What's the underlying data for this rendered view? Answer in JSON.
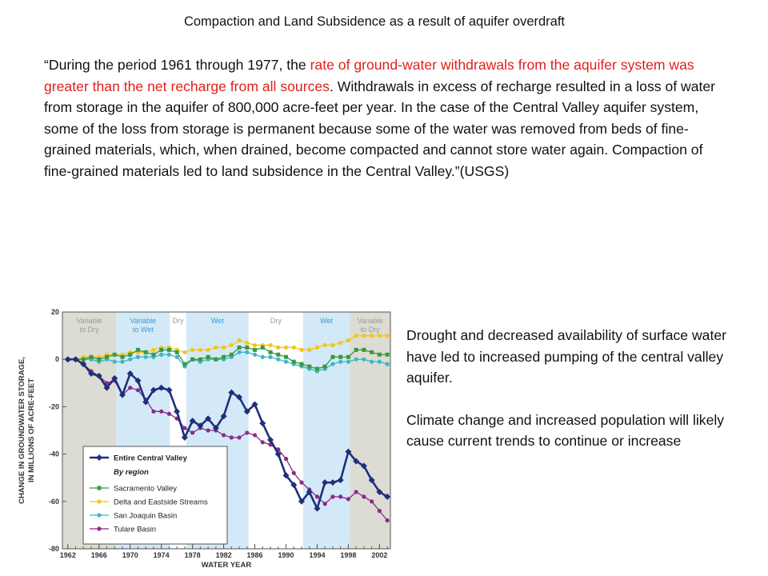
{
  "title": "Compaction and Land Subsidence as a result of aquifer overdraft",
  "quote": {
    "parts": [
      "“During the period 1961 through 1977, the ",
      "rate of ground-water withdrawals from the aquifer system was greater than the net recharge from all sources",
      ". Withdrawals in excess of recharge resulted in a loss of water from storage in the aquifer of 800,000 acre-feet per year. In the case of the Central Valley aquifer system, some of the loss from storage is permanent because some of the water was removed from beds of fine-grained materials, which, when drained, become compacted and cannot store water again. Compaction of fine-grained materials led to land subsidence in the Central Valley.”(USGS)"
    ],
    "highlight_part": 1,
    "highlight_color": "#e0201b"
  },
  "side_text": [
    "Drought and decreased availability of surface water have led to increased pumping of the central valley aquifer.",
    "Climate change and increased population will likely cause current trends to continue or increase"
  ],
  "chart_data": {
    "type": "line",
    "y_label_lines": [
      "CHANGE IN GROUNDWATER STORAGE,",
      "IN MILLIONS OF ACRE-FEET"
    ],
    "x_label": "WATER YEAR",
    "xlim": [
      1961.3,
      2003.4
    ],
    "xticks": [
      1962,
      1966,
      1970,
      1974,
      1978,
      1982,
      1986,
      1990,
      1994,
      1998,
      2002
    ],
    "ylim": [
      -80,
      20
    ],
    "yticks": [
      -80,
      -60,
      -40,
      -20,
      0,
      20
    ],
    "periods": [
      {
        "label_lines": [
          "Variable",
          "to Dry"
        ],
        "start": 1961.3,
        "end": 1968.2,
        "color": "#dcdcd4",
        "text_color": "#9a9a92"
      },
      {
        "label_lines": [
          "Variable",
          "to Wet"
        ],
        "start": 1968.2,
        "end": 1975.1,
        "color": "#d3e9f7",
        "text_color": "#3a9ad6"
      },
      {
        "label_lines": [
          "Dry"
        ],
        "start": 1975.1,
        "end": 1977.2,
        "color": "#ffffff",
        "text_color": "#9a9a92"
      },
      {
        "label_lines": [
          "Wet"
        ],
        "start": 1977.2,
        "end": 1985.2,
        "color": "#d3e9f7",
        "text_color": "#3a9ad6"
      },
      {
        "label_lines": [
          "Dry"
        ],
        "start": 1985.2,
        "end": 1992.2,
        "color": "#ffffff",
        "text_color": "#9a9a92"
      },
      {
        "label_lines": [
          "Wet"
        ],
        "start": 1992.2,
        "end": 1998.2,
        "color": "#d3e9f7",
        "text_color": "#3a9ad6"
      },
      {
        "label_lines": [
          "Variable",
          "to Dry"
        ],
        "start": 1998.2,
        "end": 2003.4,
        "color": "#dcdcd4",
        "text_color": "#9a9a92"
      }
    ],
    "legend_subheading": "By region",
    "x": [
      1962,
      1963,
      1964,
      1965,
      1966,
      1967,
      1968,
      1969,
      1970,
      1971,
      1972,
      1973,
      1974,
      1975,
      1976,
      1977,
      1978,
      1979,
      1980,
      1981,
      1982,
      1983,
      1984,
      1985,
      1986,
      1987,
      1988,
      1989,
      1990,
      1991,
      1992,
      1993,
      1994,
      1995,
      1996,
      1997,
      1998,
      1999,
      2000,
      2001,
      2002,
      2003
    ],
    "series": [
      {
        "name": "Entire Central Valley",
        "color": "#1f2f7a",
        "marker": "diamond",
        "values": [
          0,
          0,
          -2,
          -6,
          -7,
          -12,
          -8,
          -15,
          -6,
          -9,
          -18,
          -13,
          -12,
          -13,
          -22,
          -33,
          -26,
          -28,
          -25,
          -29,
          -24,
          -14,
          -16,
          -22,
          -19,
          -27,
          -34,
          -40,
          -49,
          -53,
          -60,
          -56,
          -63,
          -52,
          -52,
          -51,
          -39,
          -43,
          -45,
          -51,
          -56,
          -58
        ]
      },
      {
        "name": "Sacramento Valley",
        "color": "#3a9a3a",
        "marker": "square",
        "values": [
          0,
          0,
          0,
          1,
          0,
          1,
          2,
          1,
          2,
          4,
          3,
          2,
          4,
          4,
          3,
          -2,
          0,
          0,
          1,
          0,
          1,
          2,
          5,
          5,
          4,
          5,
          3,
          2,
          1,
          -1,
          -2,
          -3,
          -4,
          -3,
          1,
          1,
          1,
          4,
          4,
          3,
          2,
          2
        ]
      },
      {
        "name": "Delta and Eastside Streams",
        "color": "#f5c518",
        "marker": "circle",
        "values": [
          0,
          0,
          1,
          1,
          1,
          2,
          2,
          2,
          3,
          3,
          3,
          4,
          5,
          5,
          4,
          3,
          4,
          4,
          4,
          5,
          5,
          6,
          8,
          7,
          6,
          6,
          6,
          5,
          5,
          5,
          4,
          4,
          5,
          6,
          6,
          7,
          8,
          10,
          10,
          10,
          10,
          10
        ]
      },
      {
        "name": "San Joaquin Basin",
        "color": "#3ab7c9",
        "marker": "circle",
        "values": [
          0,
          0,
          0,
          0,
          -1,
          0,
          -1,
          -1,
          0,
          1,
          1,
          1,
          2,
          2,
          1,
          -3,
          0,
          -1,
          0,
          0,
          0,
          1,
          3,
          3,
          2,
          1,
          1,
          0,
          -1,
          -2,
          -3,
          -4,
          -5,
          -4,
          -2,
          -1,
          -1,
          0,
          0,
          -1,
          -1,
          -2
        ]
      },
      {
        "name": "Tulare Basin",
        "color": "#8b2a8b",
        "marker": "circle",
        "values": [
          0,
          0,
          -2,
          -5,
          -7,
          -10,
          -9,
          -15,
          -12,
          -13,
          -17,
          -22,
          -22,
          -23,
          -25,
          -29,
          -31,
          -29,
          -30,
          -30,
          -32,
          -33,
          -33,
          -31,
          -32,
          -35,
          -36,
          -38,
          -42,
          -48,
          -52,
          -55,
          -58,
          -61,
          -58,
          -58,
          -59,
          -56,
          -58,
          -60,
          -64,
          -68
        ]
      }
    ]
  }
}
